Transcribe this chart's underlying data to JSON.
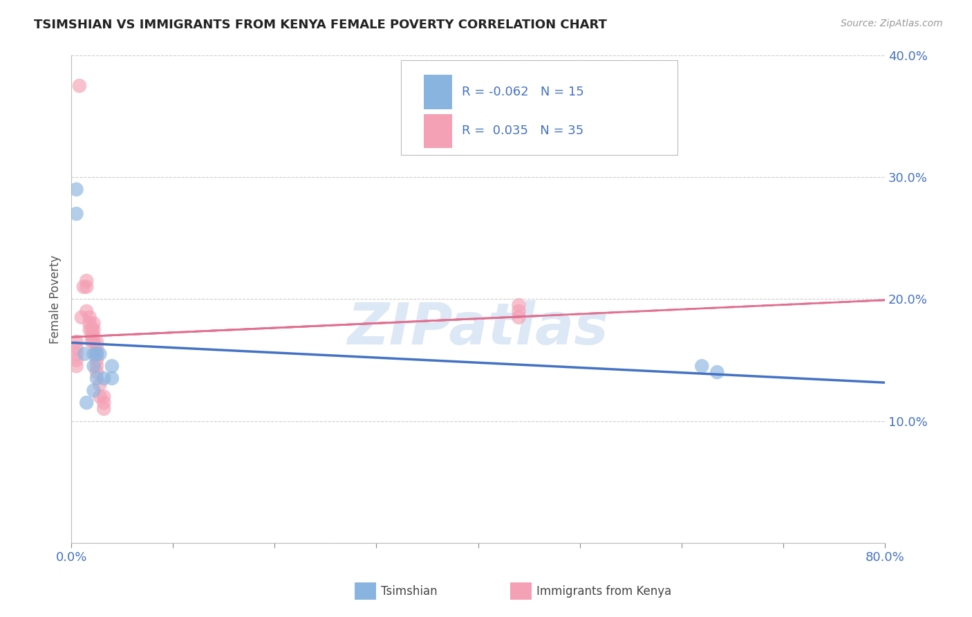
{
  "title": "TSIMSHIAN VS IMMIGRANTS FROM KENYA FEMALE POVERTY CORRELATION CHART",
  "source": "Source: ZipAtlas.com",
  "ylabel": "Female Poverty",
  "xlim": [
    0.0,
    0.8
  ],
  "ylim": [
    0.0,
    0.4
  ],
  "grid_color": "#cccccc",
  "background_color": "#ffffff",
  "tsimshian_color": "#8ab4e0",
  "kenya_color": "#f4a0b5",
  "tsimshian_line_color": "#4472c4",
  "kenya_line_color": "#e07090",
  "text_color": "#4472c4",
  "tsimshian_R": -0.062,
  "tsimshian_N": 15,
  "kenya_R": 0.035,
  "kenya_N": 35,
  "tsimshian_x": [
    0.005,
    0.005,
    0.013,
    0.015,
    0.022,
    0.022,
    0.022,
    0.025,
    0.025,
    0.028,
    0.032,
    0.04,
    0.04,
    0.62,
    0.635
  ],
  "tsimshian_y": [
    0.29,
    0.27,
    0.155,
    0.115,
    0.155,
    0.145,
    0.125,
    0.155,
    0.135,
    0.155,
    0.135,
    0.145,
    0.135,
    0.145,
    0.14
  ],
  "kenya_x": [
    0.008,
    0.005,
    0.005,
    0.005,
    0.005,
    0.005,
    0.01,
    0.012,
    0.015,
    0.015,
    0.015,
    0.018,
    0.018,
    0.018,
    0.02,
    0.02,
    0.02,
    0.022,
    0.022,
    0.022,
    0.022,
    0.025,
    0.025,
    0.025,
    0.025,
    0.025,
    0.025,
    0.028,
    0.028,
    0.032,
    0.032,
    0.032,
    0.44,
    0.44,
    0.44
  ],
  "kenya_y": [
    0.375,
    0.165,
    0.16,
    0.155,
    0.15,
    0.145,
    0.185,
    0.21,
    0.215,
    0.21,
    0.19,
    0.185,
    0.18,
    0.175,
    0.175,
    0.17,
    0.165,
    0.18,
    0.175,
    0.17,
    0.165,
    0.165,
    0.16,
    0.155,
    0.15,
    0.145,
    0.14,
    0.13,
    0.12,
    0.12,
    0.115,
    0.11,
    0.195,
    0.19,
    0.185
  ],
  "watermark": "ZIPatlas",
  "watermark_color": "#dce8f5",
  "legend_title_tsimshian": "R = -0.062   N = 15",
  "legend_title_kenya": "R =  0.035   N = 35"
}
